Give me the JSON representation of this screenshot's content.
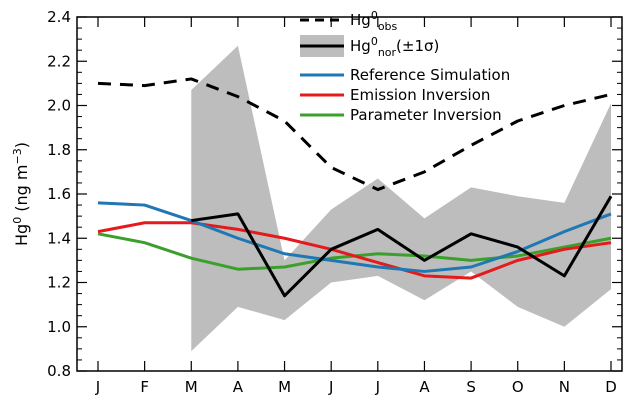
{
  "chart_data": {
    "type": "line",
    "categories": [
      "J",
      "F",
      "M",
      "A",
      "M",
      "J",
      "J",
      "A",
      "S",
      "O",
      "N",
      "D"
    ],
    "ylabel": {
      "base": "Hg",
      "sup": "0",
      "unit_prefix": " (ng m",
      "unit_sup": "−3",
      "unit_suffix": ")"
    },
    "ylim": [
      0.8,
      2.4
    ],
    "yticks": [
      "0.8",
      "1.0",
      "1.2",
      "1.4",
      "1.6",
      "1.8",
      "2.0",
      "2.2",
      "2.4"
    ],
    "band": {
      "name": "Hg0nor(±1σ) range",
      "upper": [
        null,
        null,
        2.07,
        2.27,
        1.3,
        1.53,
        1.67,
        1.49,
        1.63,
        1.59,
        1.56,
        2.01
      ],
      "lower": [
        null,
        null,
        0.89,
        1.09,
        1.03,
        1.2,
        1.23,
        1.12,
        1.25,
        1.09,
        1.0,
        1.17
      ]
    },
    "series": [
      {
        "name": "Hg0obs",
        "color": "#000000",
        "dash": "dashed",
        "values": [
          2.1,
          2.09,
          2.12,
          2.04,
          1.93,
          1.72,
          1.62,
          1.7,
          1.82,
          1.93,
          2.0,
          2.05
        ]
      },
      {
        "name": "Hg0nor(±1σ)",
        "color": "#000000",
        "dash": "solid",
        "values": [
          null,
          null,
          1.48,
          1.51,
          1.14,
          1.35,
          1.44,
          1.3,
          1.42,
          1.36,
          1.23,
          1.59
        ]
      },
      {
        "name": "Reference Simulation",
        "color": "#1f77b4",
        "dash": "solid",
        "values": [
          1.56,
          1.55,
          1.48,
          1.4,
          1.33,
          1.3,
          1.27,
          1.25,
          1.27,
          1.34,
          1.43,
          1.51
        ]
      },
      {
        "name": "Emission Inversion",
        "color": "#e41a1c",
        "dash": "solid",
        "values": [
          1.43,
          1.47,
          1.47,
          1.44,
          1.4,
          1.35,
          1.29,
          1.23,
          1.22,
          1.3,
          1.35,
          1.38
        ]
      },
      {
        "name": "Parameter Inversion",
        "color": "#3aa02b",
        "dash": "solid",
        "values": [
          1.42,
          1.38,
          1.31,
          1.26,
          1.27,
          1.31,
          1.33,
          1.32,
          1.3,
          1.32,
          1.36,
          1.4
        ]
      }
    ],
    "legend": {
      "position": "top-right",
      "entries": [
        {
          "key": "obs",
          "base": "Hg",
          "sup": "0",
          "sub": "obs",
          "tail": ""
        },
        {
          "key": "nor",
          "base": "Hg",
          "sup": "0",
          "sub": "nor",
          "tail": "(±1σ)"
        },
        {
          "key": "ref",
          "text": "Reference Simulation"
        },
        {
          "key": "emis",
          "text": "Emission Inversion"
        },
        {
          "key": "param",
          "text": "Parameter Inversion"
        }
      ]
    },
    "grid": false
  }
}
